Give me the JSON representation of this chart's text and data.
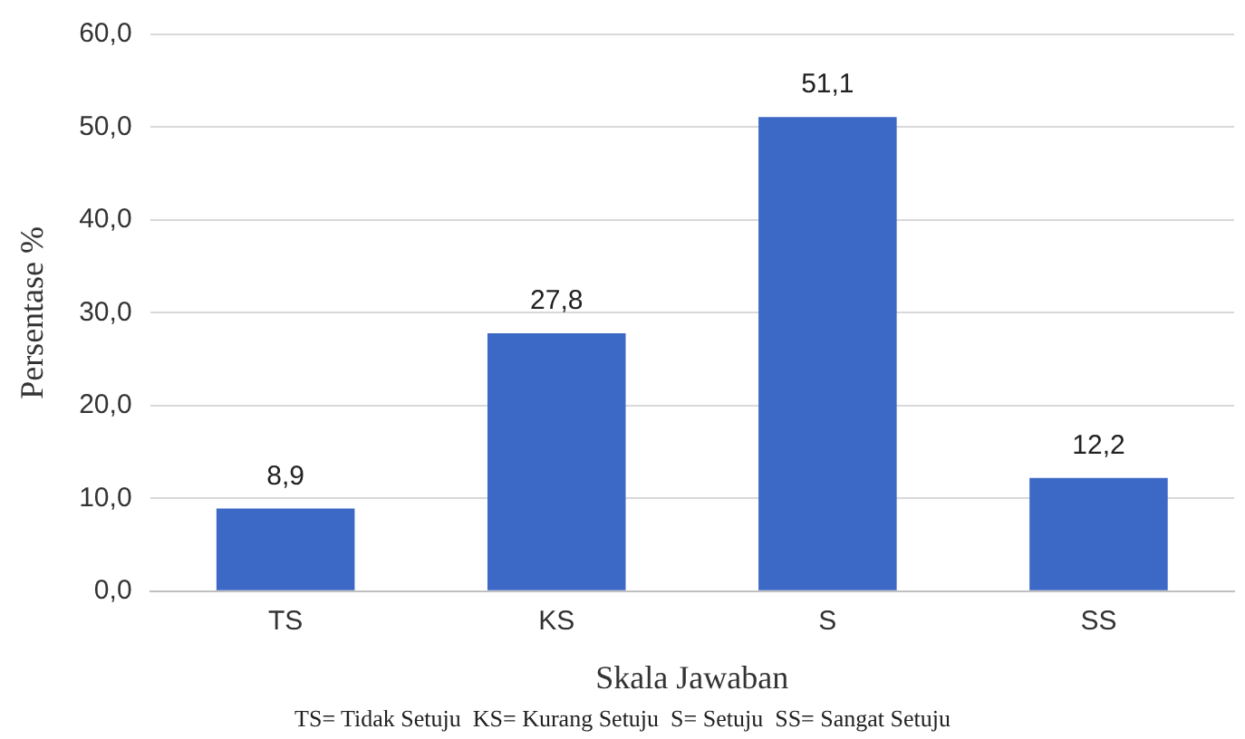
{
  "chart_data": {
    "type": "bar",
    "xlabel": "Skala Jawaban",
    "ylabel": "Persentase %",
    "categories": [
      "TS",
      "KS",
      "S",
      "SS"
    ],
    "values": [
      8.9,
      27.8,
      51.1,
      12.2
    ],
    "value_labels": [
      "8,9",
      "27,8",
      "51,1",
      "12,2"
    ],
    "color": "#3d69c6",
    "ylim": [
      0,
      60
    ],
    "yticks": [
      {
        "value": 0,
        "label": "0,0"
      },
      {
        "value": 10,
        "label": "10,0"
      },
      {
        "value": 20,
        "label": "20,0"
      },
      {
        "value": 30,
        "label": "30,0"
      },
      {
        "value": 40,
        "label": "40,0"
      },
      {
        "value": 50,
        "label": "50,0"
      },
      {
        "value": 60,
        "label": "60,0"
      }
    ],
    "grid": "y",
    "legend": false,
    "annotations": [
      "TS= Tidak Setuju  KS= Kurang Setuju  S= Setuju  SS= Sangat Setuju"
    ]
  }
}
